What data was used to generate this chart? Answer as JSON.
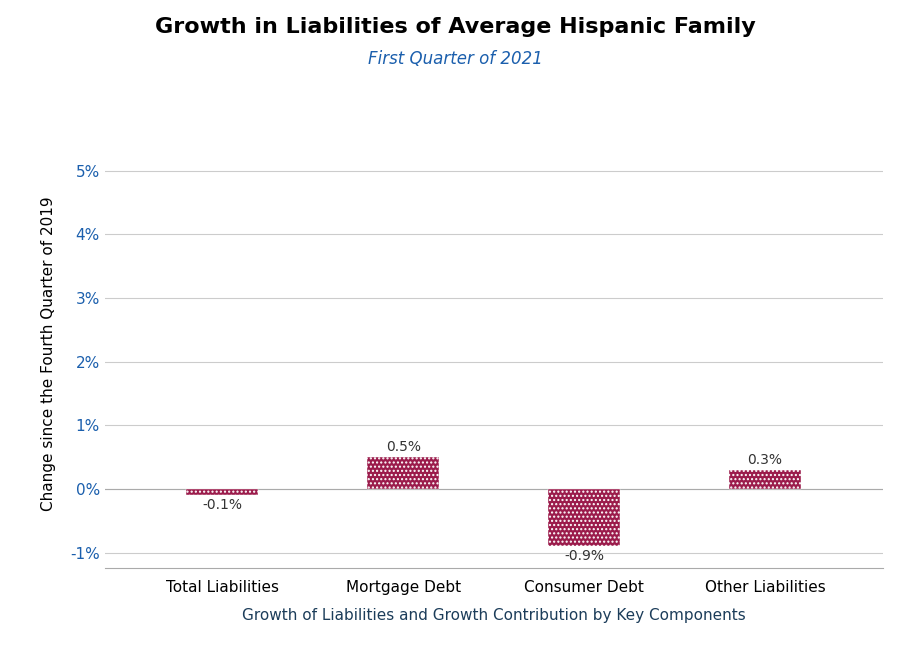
{
  "title": "Growth in Liabilities of Average Hispanic Family",
  "subtitle": "First Quarter of 2021",
  "xlabel": "Growth of Liabilities and Growth Contribution by Key Components",
  "ylabel": "Change since the Fourth Quarter of 2019",
  "categories": [
    "Total Liabilities",
    "Mortgage Debt",
    "Consumer Debt",
    "Other Liabilities"
  ],
  "values": [
    -0.1,
    0.5,
    -0.9,
    0.3
  ],
  "bar_color": "#9B1B4B",
  "bar_width": 0.4,
  "ylim": [
    -1.25,
    5.5
  ],
  "yticks": [
    -1.0,
    0.0,
    1.0,
    2.0,
    3.0,
    4.0,
    5.0
  ],
  "ytick_labels": [
    "-1%",
    "0%",
    "1%",
    "2%",
    "3%",
    "4%",
    "5%"
  ],
  "value_labels": [
    "-0.1%",
    "0.5%",
    "-0.9%",
    "0.3%"
  ],
  "footer_bg": "#1C3D5A",
  "footer_text_color": "#FFFFFF",
  "title_color": "#000000",
  "subtitle_color": "#1B5FAD",
  "xlabel_color": "#1C3D5A",
  "ylabel_color": "#000000",
  "tick_label_color": "#1B5FAD",
  "grid_color": "#CCCCCC",
  "bg_color": "#FFFFFF",
  "plot_bg_color": "#FFFFFF"
}
